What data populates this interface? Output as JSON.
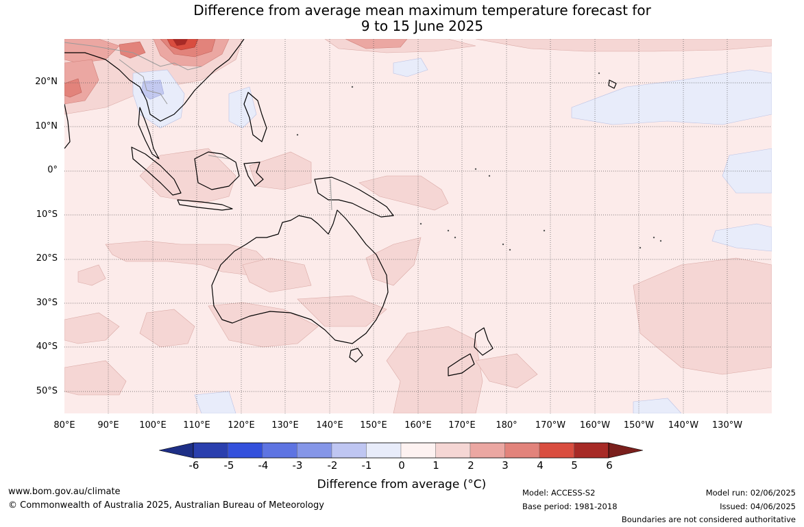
{
  "title": {
    "line1": "Difference from average mean maximum temperature forecast for",
    "line2": "9 to 15 June 2025"
  },
  "map": {
    "lat_labels": [
      "20°N",
      "10°N",
      "0°",
      "10°S",
      "20°S",
      "30°S",
      "40°S",
      "50°S"
    ],
    "lon_labels": [
      "80°E",
      "90°E",
      "100°E",
      "110°E",
      "120°E",
      "130°E",
      "140°E",
      "150°E",
      "160°E",
      "170°E",
      "180°",
      "170°W",
      "160°W",
      "150°W",
      "140°W",
      "130°W"
    ],
    "colors": {
      "ocean_fill": "#fcebea",
      "anomaly_1_2": "#f5d6d4",
      "anomaly_2_3": "#eba7a2",
      "anomaly_3_4": "#e2837b",
      "anomaly_4_5": "#d94d3f",
      "anomaly_5_6": "#a72a26",
      "anomaly_neg1_0": "#e8ecfa",
      "anomaly_neg2_neg1": "#c3c9f0",
      "coastline": "#000000",
      "gridline": "#555555"
    }
  },
  "colorbar": {
    "label": "Difference from average (°C)",
    "ticks": [
      "-6",
      "-5",
      "-4",
      "-3",
      "-2",
      "-1",
      "0",
      "1",
      "2",
      "3",
      "4",
      "5",
      "6"
    ],
    "colors": [
      "#1e2f86",
      "#2a3fae",
      "#3350dc",
      "#5e74e2",
      "#8596e8",
      "#bfc6f2",
      "#e8ecfa",
      "#fdf2f1",
      "#f5d6d4",
      "#eba7a2",
      "#e2837b",
      "#d94d3f",
      "#a72a26",
      "#7a1f1c"
    ]
  },
  "footer": {
    "url": "www.bom.gov.au/climate",
    "copyright": "© Commonwealth of Australia 2025, Australian Bureau of Meteorology",
    "model": "Model: ACCESS-S2",
    "base_period": "Base period: 1981-2018",
    "model_run": "Model run: 02/06/2025",
    "issued": "Issued: 04/06/2025",
    "disclaimer": "Boundaries are not considered authoritative"
  }
}
